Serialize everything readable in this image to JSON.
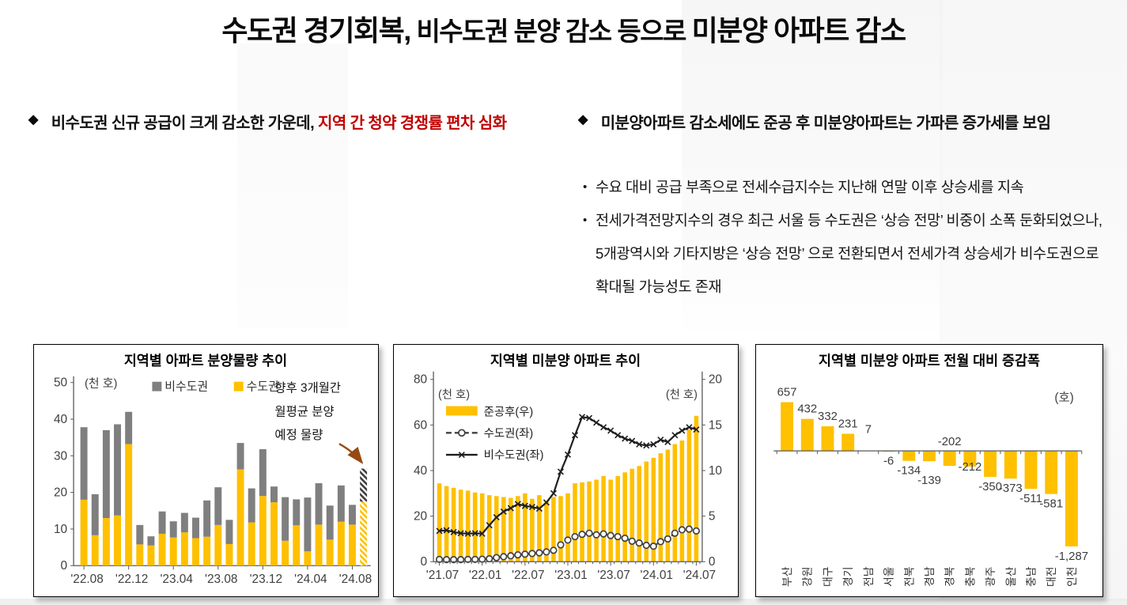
{
  "title": {
    "seg1": "수도권 경기회복,",
    "seg2": " 비수도권 분양 감소 등으로 ",
    "seg3": "미분양 아파트 감소"
  },
  "bullets": {
    "left_prefix": "비수도권 신규 공급이 크게 감소한 가운데, ",
    "left_highlight": "지역 간 청약 경쟁률 편차 심화",
    "right": "미분양아파트 감소세에도 준공 후 미분양아파트는 가파른 증가세를 보임",
    "sub1": "수요 대비 공급 부족으로 전세수급지수는 지난해 연말 이후 상승세를 지속",
    "sub2_lines": [
      "전세가격전망지수의 경우 최근 서울 등 수도권은 ‘상승 전망’ 비중이 소폭 둔화되었으나,",
      "5개광역시와 기타지방은 ‘상승 전망’ 으로 전환되면서 전세가격 상승세가 비수도권으로",
      "확대될 가능성도 존재"
    ],
    "marker_diamond": "◆",
    "marker_dot": "•"
  },
  "colors": {
    "accent_gold": "#FFC000",
    "series_gray": "#7F7F7F",
    "highlight_red": "#C00000",
    "arrow_brown": "#96491280",
    "axis_gray": "#595959",
    "label_gray": "#404040"
  },
  "chart_data": [
    {
      "type": "bar",
      "stacked": true,
      "title": "지역별 아파트 분양물량 추이",
      "unit": "(천 호)",
      "ylim": [
        0,
        50
      ],
      "yticks": [
        0,
        10,
        20,
        30,
        40,
        50
      ],
      "categories": [
        "'22.08",
        "'22.09",
        "'22.10",
        "'22.11",
        "'22.12",
        "'23.01",
        "'23.02",
        "'23.03",
        "'23.04",
        "'23.05",
        "'23.06",
        "'23.07",
        "'23.08",
        "'23.09",
        "'23.10",
        "'23.11",
        "'23.12",
        "'24.01",
        "'24.02",
        "'24.03",
        "'24.04",
        "'24.05",
        "'24.06",
        "'24.07",
        "'24.08",
        "전망(향후 3개월 월평균)"
      ],
      "x_tick_labels": [
        "'22.08",
        "'22.12",
        "'23.04",
        "'23.08",
        "'23.12",
        "'24.04",
        "'24.08"
      ],
      "x_tick_slots": [
        0,
        4,
        8,
        12,
        16,
        20,
        24
      ],
      "series": [
        {
          "name": "수도권",
          "color": "#FFC000",
          "values": [
            18.0,
            8.3,
            13.0,
            13.7,
            33.2,
            5.8,
            5.5,
            8.7,
            7.7,
            9.1,
            7.5,
            7.9,
            11.1,
            5.9,
            26.3,
            11.8,
            19.0,
            17.3,
            6.8,
            11.0,
            3.9,
            11.2,
            7.1,
            12.0,
            11.2,
            17.5
          ]
        },
        {
          "name": "비수도권",
          "color": "#7F7F7F",
          "values": [
            19.8,
            11.2,
            24.0,
            24.9,
            8.8,
            5.3,
            2.5,
            6.1,
            4.4,
            5.3,
            5.6,
            9.9,
            10.3,
            6.6,
            7.2,
            9.3,
            12.8,
            4.3,
            11.9,
            7.1,
            14.7,
            11.3,
            9.3,
            9.9,
            5.4,
            9.0
          ]
        }
      ],
      "legend": [
        "비수도권",
        "수도권"
      ],
      "forecast_index": 25,
      "annotation": {
        "lines": [
          "향후 3개월간",
          "월평균 분양",
          "예정 물량"
        ],
        "arrow_color": "#964912"
      }
    },
    {
      "type": "line+bar",
      "title": "지역별 미분양 아파트 추이",
      "unit_left": "(천 호)",
      "unit_right": "(천 호)",
      "ylim_left": [
        0,
        80
      ],
      "yticks_left": [
        0,
        20,
        40,
        60,
        80
      ],
      "ylim_right": [
        0,
        20
      ],
      "yticks_right": [
        0,
        5,
        10,
        15,
        20
      ],
      "categories": [
        "'21.07",
        "'21.08",
        "'21.09",
        "'21.10",
        "'21.11",
        "'21.12",
        "'22.01",
        "'22.02",
        "'22.03",
        "'22.04",
        "'22.05",
        "'22.06",
        "'22.07",
        "'22.08",
        "'22.09",
        "'22.10",
        "'22.11",
        "'22.12",
        "'23.01",
        "'23.02",
        "'23.03",
        "'23.04",
        "'23.05",
        "'23.06",
        "'23.07",
        "'23.08",
        "'23.09",
        "'23.10",
        "'23.11",
        "'23.12",
        "'24.01",
        "'24.02",
        "'24.03",
        "'24.04",
        "'24.05",
        "'24.06",
        "'24.07"
      ],
      "x_tick_labels": [
        "'21.07",
        "'22.01",
        "'22.07",
        "'23.01",
        "'23.07",
        "'24.01",
        "'24.07"
      ],
      "x_tick_slots": [
        0,
        6,
        12,
        18,
        24,
        30,
        36
      ],
      "bar_series": {
        "name": "준공후(우)",
        "axis": "right",
        "color": "#FFC000",
        "values": [
          8.6,
          8.3,
          8.1,
          7.9,
          7.8,
          7.6,
          7.5,
          7.3,
          7.2,
          7.1,
          7.0,
          7.2,
          7.5,
          6.9,
          7.3,
          6.6,
          7.1,
          7.2,
          7.5,
          8.6,
          8.7,
          8.8,
          9.0,
          9.4,
          9.0,
          9.4,
          9.8,
          10.2,
          10.5,
          11.0,
          11.4,
          11.9,
          12.3,
          12.9,
          13.3,
          14.5,
          16.0
        ]
      },
      "line_series": [
        {
          "name": "수도권(좌)",
          "axis": "left",
          "style": "dashed",
          "marker": "circle",
          "values": [
            1.0,
            0.9,
            0.9,
            0.9,
            1.0,
            1.0,
            1.1,
            1.3,
            1.8,
            2.2,
            2.6,
            3.0,
            3.3,
            3.6,
            3.9,
            4.3,
            5.0,
            7.4,
            9.5,
            11.0,
            12.0,
            12.5,
            11.8,
            12.2,
            11.5,
            11.0,
            10.3,
            9.0,
            8.2,
            7.2,
            6.8,
            8.8,
            10.0,
            12.5,
            14.0,
            14.3,
            13.5
          ]
        },
        {
          "name": "비수도권(좌)",
          "axis": "left",
          "style": "solid",
          "marker": "x",
          "values": [
            13.5,
            13.8,
            13.0,
            12.5,
            12.3,
            12.5,
            12.3,
            16.0,
            19.5,
            22.0,
            23.5,
            25.3,
            24.5,
            24.0,
            23.3,
            26.0,
            30.0,
            39.5,
            47.0,
            55.5,
            63.5,
            63.0,
            61.0,
            59.0,
            57.5,
            55.5,
            54.0,
            53.0,
            51.5,
            51.0,
            51.5,
            53.5,
            52.5,
            55.5,
            57.5,
            59.0,
            58.0
          ]
        }
      ]
    },
    {
      "type": "bar",
      "title": "지역별 미분양 아파트 전월 대비 증감폭",
      "unit": "(호)",
      "bar_color": "#FFC000",
      "categories": [
        "부산",
        "강원",
        "대구",
        "경기",
        "전남",
        "서울",
        "전북",
        "경남",
        "경북",
        "충북",
        "광주",
        "울산",
        "충남",
        "대전",
        "인천"
      ],
      "values": [
        657,
        432,
        332,
        231,
        7,
        -6,
        -134,
        -139,
        -202,
        -212,
        -350,
        -373,
        -511,
        -581,
        -1287
      ],
      "label_offsets": [
        0,
        0,
        0,
        0,
        -14,
        0,
        0,
        12,
        0,
        -12,
        0,
        0,
        0,
        0,
        0
      ],
      "above_axis_label_indices": [
        8
      ]
    }
  ]
}
